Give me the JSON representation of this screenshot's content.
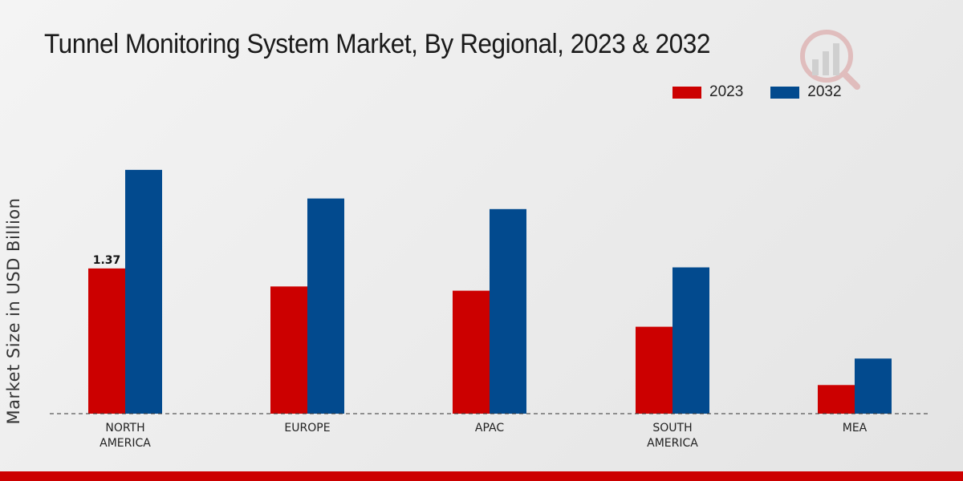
{
  "chart_data": {
    "type": "bar",
    "title": "Tunnel Monitoring System Market, By Regional, 2023 & 2032",
    "xlabel": "",
    "ylabel": "Market Size in USD Billion",
    "categories": [
      "NORTH\nAMERICA",
      "EUROPE",
      "APAC",
      "SOUTH\nAMERICA",
      "MEA"
    ],
    "series": [
      {
        "name": "2023",
        "color": "#cc0000",
        "values": [
          1.37,
          1.2,
          1.16,
          0.82,
          0.27
        ]
      },
      {
        "name": "2032",
        "color": "#024a8e",
        "values": [
          2.3,
          2.03,
          1.93,
          1.38,
          0.52
        ]
      }
    ],
    "ylim": [
      0,
      3.6
    ],
    "grid": false,
    "legend_position": "top-right",
    "annotations": [
      {
        "series": 0,
        "index": 0,
        "text": "1.37"
      }
    ]
  }
}
